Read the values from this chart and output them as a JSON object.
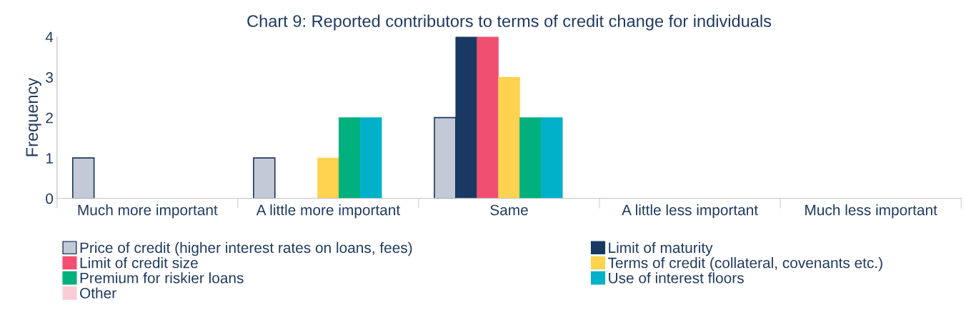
{
  "chart_data": {
    "type": "bar",
    "title": "Chart 9: Reported contributors to terms of credit change for individuals",
    "ylabel": "Frequency",
    "categories": [
      "Much more important",
      "A little more important",
      "Same",
      "A little less important",
      "Much less important"
    ],
    "series": [
      {
        "name": "Price of credit (higher interest rates on loans, fees)",
        "color": "#c3c9d6",
        "values": [
          1,
          1,
          2,
          0,
          0
        ]
      },
      {
        "name": "Limit of maturity",
        "color": "#183a62",
        "values": [
          0,
          0,
          4,
          0,
          0
        ]
      },
      {
        "name": "Limit of credit size",
        "color": "#f04f72",
        "values": [
          0,
          0,
          4,
          0,
          0
        ]
      },
      {
        "name": "Terms of credit (collateral, covenants etc.)",
        "color": "#ffd24f",
        "values": [
          0,
          1,
          3,
          0,
          0
        ]
      },
      {
        "name": "Premium for riskier loans",
        "color": "#00b07d",
        "values": [
          0,
          2,
          2,
          0,
          0
        ]
      },
      {
        "name": "Use of interest floors",
        "color": "#00b1c9",
        "values": [
          0,
          2,
          2,
          0,
          0
        ]
      },
      {
        "name": "Other",
        "color": "#f9cdd5",
        "values": [
          0,
          0,
          0,
          0,
          0
        ]
      }
    ],
    "ylim": [
      0,
      4
    ],
    "yticks": [
      0,
      1,
      2,
      3,
      4
    ],
    "grid": false,
    "legend": "bottom"
  }
}
